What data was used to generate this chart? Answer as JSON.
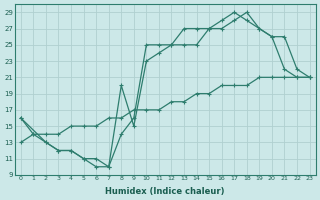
{
  "xlabel": "Humidex (Indice chaleur)",
  "ylabel": "",
  "bg_color": "#cce8e8",
  "grid_color": "#b0d0d0",
  "line_color": "#2e7d6e",
  "xlim": [
    -0.5,
    23.5
  ],
  "ylim": [
    9,
    30
  ],
  "xticks": [
    0,
    1,
    2,
    3,
    4,
    5,
    6,
    7,
    8,
    9,
    10,
    11,
    12,
    13,
    14,
    15,
    16,
    17,
    18,
    19,
    20,
    21,
    22,
    23
  ],
  "yticks": [
    9,
    11,
    13,
    15,
    17,
    19,
    21,
    23,
    25,
    27,
    29
  ],
  "line1_x": [
    0,
    1,
    2,
    3,
    4,
    5,
    6,
    7,
    8,
    9,
    10,
    11,
    12,
    13,
    14,
    15,
    16,
    17,
    18,
    19,
    20,
    21,
    22,
    23
  ],
  "line1_y": [
    13,
    14,
    14,
    14,
    15,
    15,
    15,
    16,
    16,
    17,
    17,
    17,
    18,
    18,
    19,
    19,
    20,
    20,
    20,
    21,
    21,
    21,
    21,
    21
  ],
  "line2_x": [
    0,
    1,
    2,
    3,
    4,
    5,
    6,
    7,
    8,
    9,
    10,
    11,
    12,
    13,
    14,
    15,
    16,
    17,
    18,
    19,
    20,
    21,
    22,
    23
  ],
  "line2_y": [
    16,
    14,
    13,
    12,
    12,
    11,
    10,
    10,
    14,
    16,
    25,
    25,
    25,
    27,
    27,
    27,
    28,
    29,
    28,
    27,
    26,
    22,
    21,
    21
  ],
  "line3_x": [
    0,
    2,
    3,
    4,
    5,
    6,
    7,
    8,
    9,
    10,
    11,
    12,
    13,
    14,
    15,
    16,
    17,
    18,
    19,
    20,
    21,
    22,
    23
  ],
  "line3_y": [
    16,
    13,
    12,
    12,
    11,
    11,
    10,
    20,
    15,
    23,
    24,
    25,
    25,
    25,
    27,
    27,
    28,
    29,
    27,
    26,
    26,
    22,
    21
  ]
}
